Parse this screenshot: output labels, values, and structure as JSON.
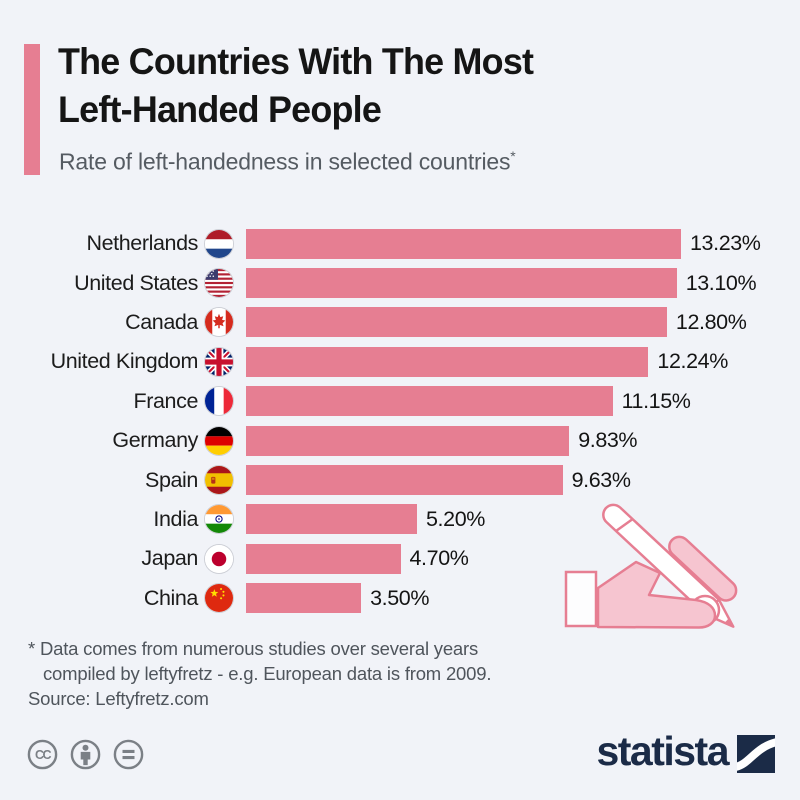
{
  "header": {
    "title_line1": "The Countries With The Most",
    "title_line2": "Left-Handed People",
    "subtitle": "Rate of left-handedness in selected countries",
    "footnote_marker": "*"
  },
  "chart_data": {
    "type": "bar",
    "orientation": "horizontal",
    "title": "The Countries With The Most Left-Handed People",
    "subtitle": "Rate of left-handedness in selected countries*",
    "categories": [
      "Netherlands",
      "United States",
      "Canada",
      "United Kingdom",
      "France",
      "Germany",
      "Spain",
      "India",
      "Japan",
      "China"
    ],
    "values": [
      13.23,
      13.1,
      12.8,
      12.24,
      11.15,
      9.83,
      9.63,
      5.2,
      4.7,
      3.5
    ],
    "labels": [
      "13.23%",
      "13.10%",
      "12.80%",
      "12.24%",
      "11.15%",
      "9.83%",
      "9.63%",
      "5.20%",
      "4.70%",
      "3.50%"
    ],
    "flag_icons": [
      "flag-netherlands",
      "flag-united-states",
      "flag-canada",
      "flag-united-kingdom",
      "flag-france",
      "flag-germany",
      "flag-spain",
      "flag-india",
      "flag-japan",
      "flag-china"
    ],
    "flag_codes": [
      "nl",
      "us",
      "ca",
      "gb",
      "fr",
      "de",
      "es",
      "in",
      "jp",
      "cn"
    ],
    "bar_color": "#e67e92",
    "xlim": [
      0,
      13.23
    ],
    "value_suffix": "%",
    "grid": false,
    "legend": false
  },
  "footer": {
    "footnote_line1": "* Data comes from numerous studies over several years",
    "footnote_line2": "compiled by leftyfretz - e.g. European data is from 2009.",
    "source": "Source: Leftyfretz.com",
    "license_icons": [
      "cc-icon",
      "attribution-icon",
      "no-derivatives-icon"
    ],
    "brand": "statista"
  },
  "colors": {
    "background": "#f1f3f8",
    "accent_pink": "#e67e92",
    "illustration_fill": "#f6c5d0",
    "title_text": "#151515",
    "muted_text": "#555b62",
    "statista_navy": "#1b2b47",
    "license_gray": "#7b8086"
  }
}
